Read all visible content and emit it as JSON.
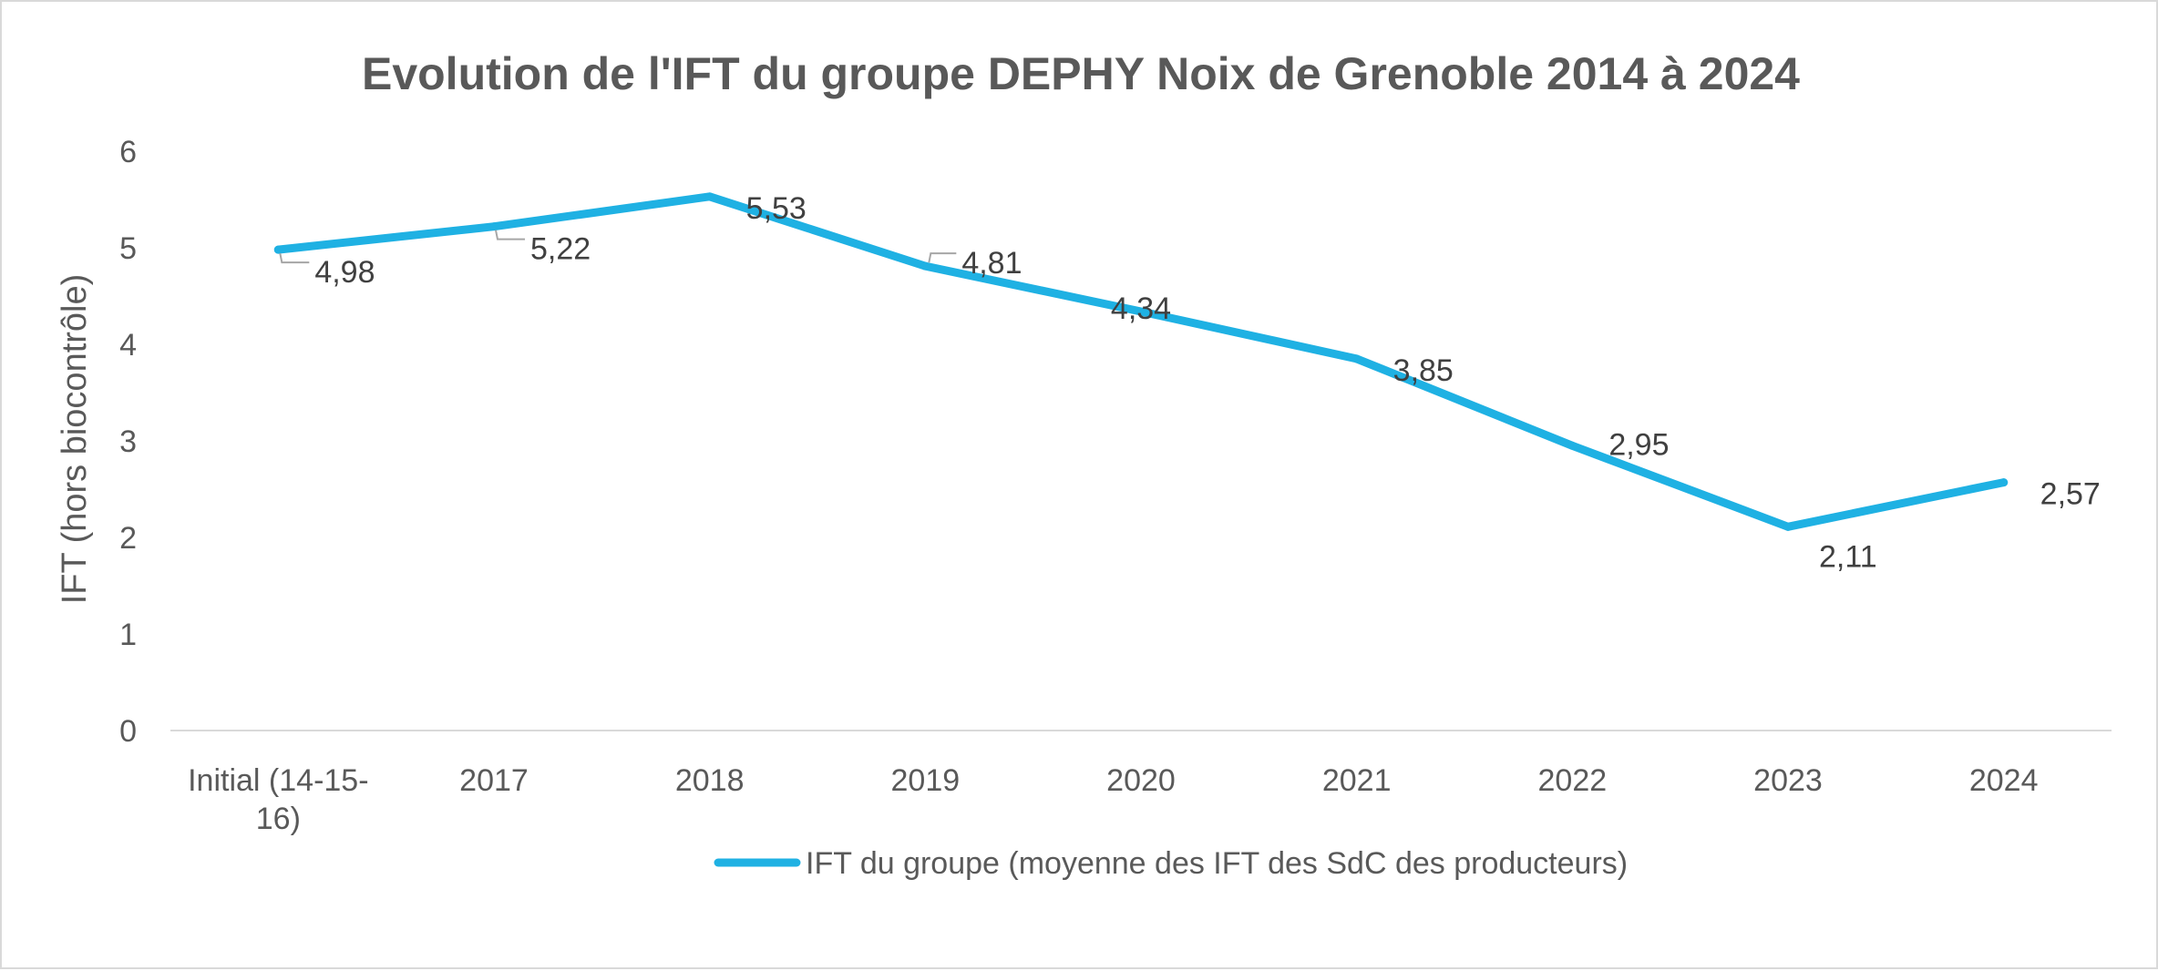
{
  "chart_data": {
    "type": "line",
    "title": "Evolution de l'IFT du groupe DEPHY Noix de Grenoble 2014 à 2024",
    "xlabel": "",
    "ylabel": "IFT (hors biocontrôle)",
    "ylim": [
      0,
      6
    ],
    "yticks": [
      "0",
      "1",
      "2",
      "3",
      "4",
      "5",
      "6"
    ],
    "categories": [
      [
        "Initial (14-15-",
        "16)"
      ],
      [
        "2017"
      ],
      [
        "2018"
      ],
      [
        "2019"
      ],
      [
        "2020"
      ],
      [
        "2021"
      ],
      [
        "2022"
      ],
      [
        "2023"
      ],
      [
        "2024"
      ]
    ],
    "series": [
      {
        "name": "IFT du groupe (moyenne des IFT des SdC des producteurs)",
        "color": "#1FB1E3",
        "values": [
          4.98,
          5.22,
          5.53,
          4.81,
          4.34,
          3.85,
          2.95,
          2.11,
          2.57
        ],
        "labels": [
          "4,98",
          "5,22",
          "5,53",
          "4,81",
          "4,34",
          "3,85",
          "2,95",
          "2,11",
          "2,57"
        ]
      }
    ],
    "grid": false,
    "legend_position": "bottom"
  }
}
